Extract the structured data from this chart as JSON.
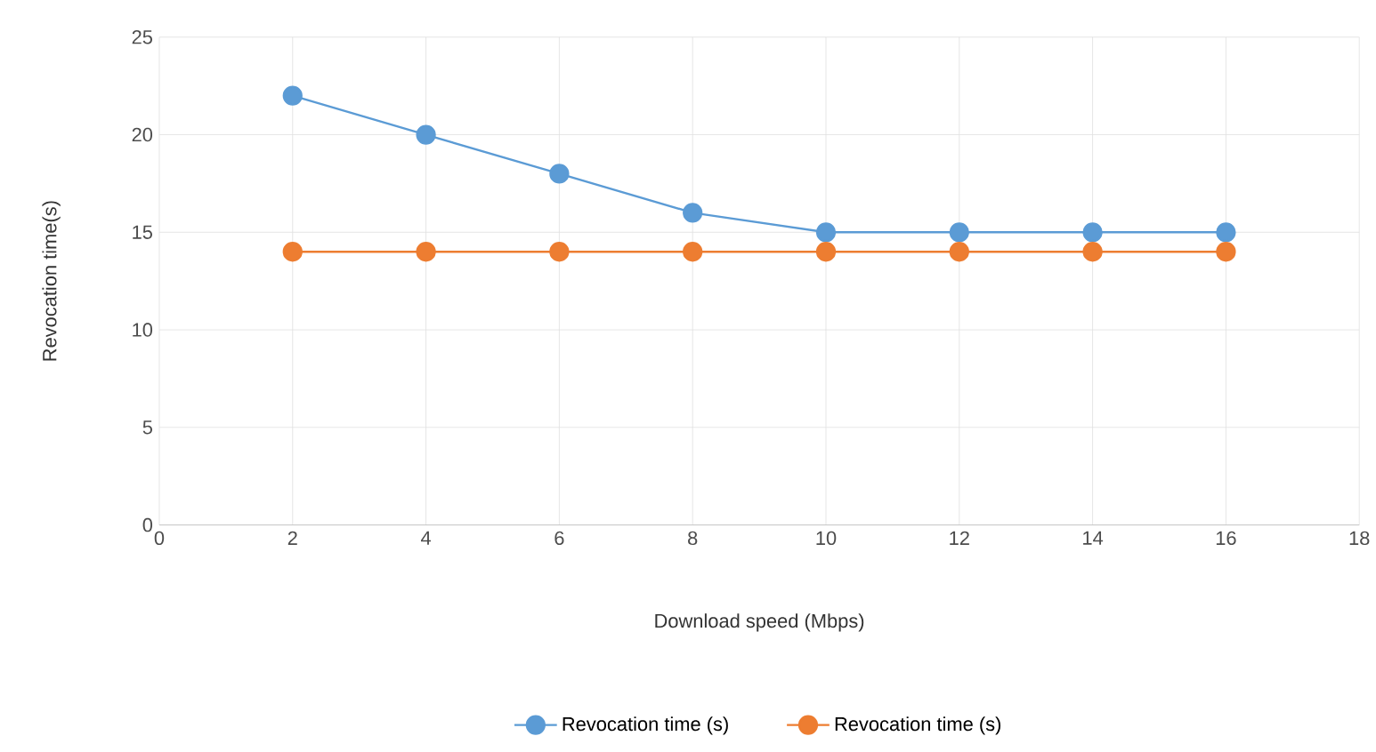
{
  "chart_data": {
    "type": "line",
    "xlabel": "Download speed (Mbps)",
    "ylabel": "Revocation time(s)",
    "x": [
      2,
      4,
      6,
      8,
      10,
      12,
      14,
      16
    ],
    "series": [
      {
        "name": "Revocation time (s)",
        "color": "#5b9bd5",
        "values": [
          22,
          20,
          18,
          16,
          15,
          15,
          15,
          15
        ]
      },
      {
        "name": "Revocation time (s)",
        "color": "#ed7d31",
        "values": [
          14,
          14,
          14,
          14,
          14,
          14,
          14,
          14
        ]
      }
    ],
    "xlim": [
      0,
      18
    ],
    "ylim": [
      0,
      25
    ],
    "xticks": [
      0,
      2,
      4,
      6,
      8,
      10,
      12,
      14,
      16,
      18
    ],
    "yticks": [
      0,
      5,
      10,
      15,
      20,
      25
    ],
    "grid": true,
    "legend": "bottom",
    "marker": "circle",
    "line_style": "solid"
  }
}
